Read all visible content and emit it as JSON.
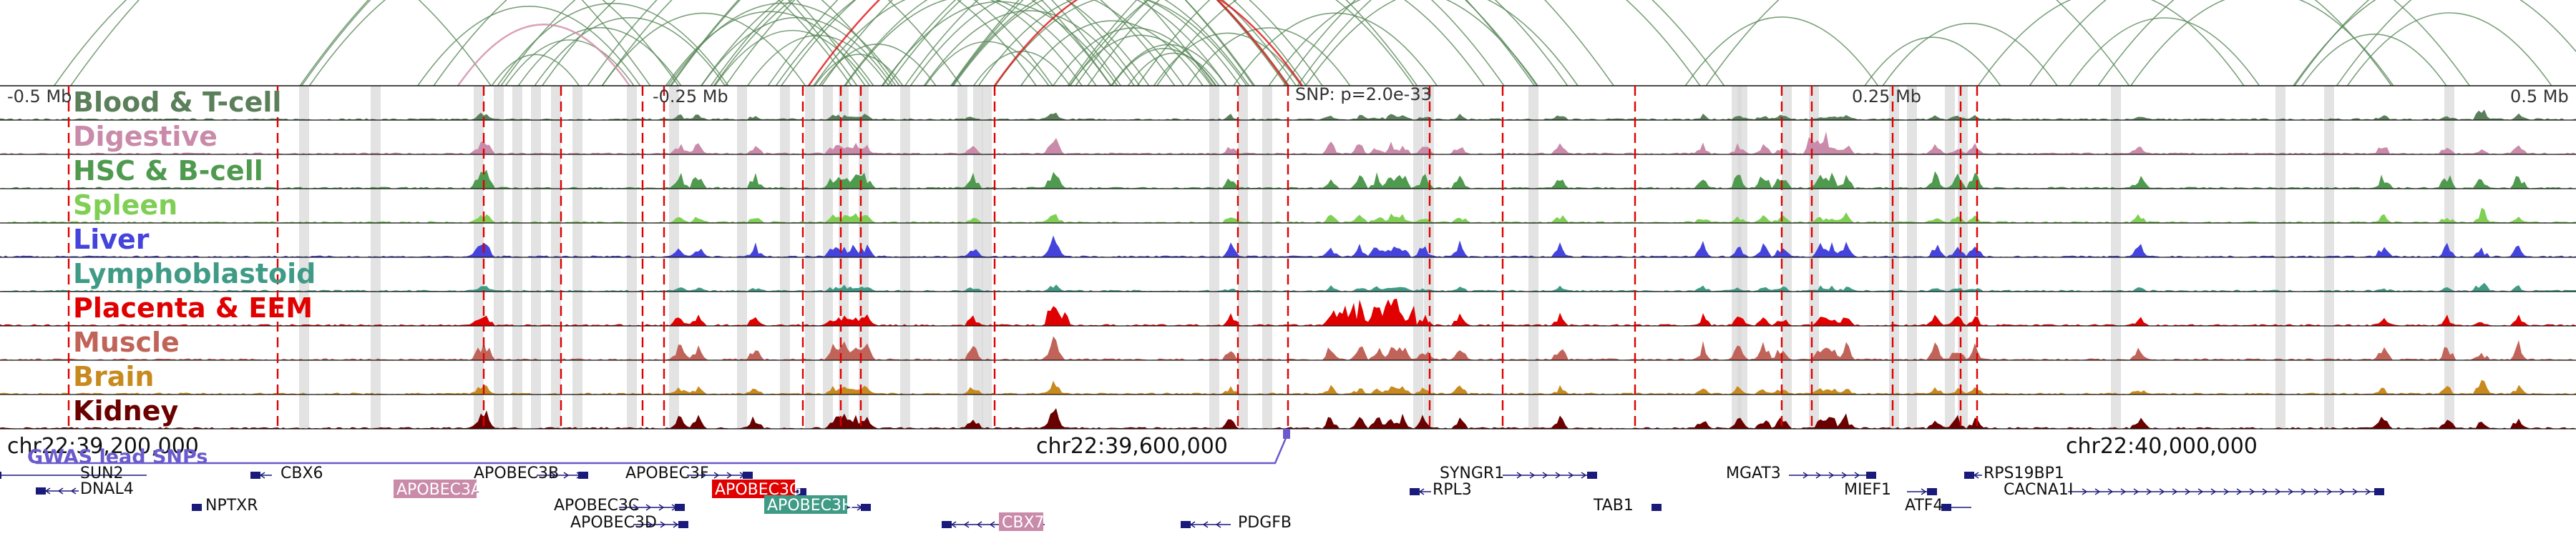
{
  "scale_labels": [
    "-0.5 Mb",
    "-0.25 Mb",
    "0.25 Mb",
    "0.5 Mb"
  ],
  "snp_label": "SNP: p=2.0e-33",
  "gwas_label": "GWAS lead SNPs",
  "coord_labels": [
    "chr22:39,200,000",
    "chr22:39,600,000",
    "chr22:40,000,000"
  ],
  "tracks": [
    {
      "name": "Blood & T-cell",
      "color": "#5b7f5b"
    },
    {
      "name": "Digestive",
      "color": "#c98ba9"
    },
    {
      "name": "HSC & B-cell",
      "color": "#4f9a4f"
    },
    {
      "name": "Spleen",
      "color": "#7fcf55"
    },
    {
      "name": "Liver",
      "color": "#4444dd"
    },
    {
      "name": "Lymphoblastoid",
      "color": "#3f9b86"
    },
    {
      "name": "Placenta & EEM",
      "color": "#e00000"
    },
    {
      "name": "Muscle",
      "color": "#c0645a"
    },
    {
      "name": "Brain",
      "color": "#c88a1e"
    },
    {
      "name": "Kidney",
      "color": "#6a0000"
    }
  ],
  "genes": [
    {
      "name": "SUN2",
      "highlight": ""
    },
    {
      "name": "DNAL4",
      "highlight": ""
    },
    {
      "name": "NPTXR",
      "highlight": ""
    },
    {
      "name": "CBX6",
      "highlight": ""
    },
    {
      "name": "APOBEC3A",
      "highlight": "#c98ba9"
    },
    {
      "name": "APOBEC3B",
      "highlight": ""
    },
    {
      "name": "APOBEC3C",
      "highlight": ""
    },
    {
      "name": "APOBEC3D",
      "highlight": ""
    },
    {
      "name": "APOBEC3F",
      "highlight": ""
    },
    {
      "name": "APOBEC3G",
      "highlight": "#e00000"
    },
    {
      "name": "APOBEC3H",
      "highlight": "#3f9b86"
    },
    {
      "name": "CBX7",
      "highlight": "#c98ba9"
    },
    {
      "name": "PDGFB",
      "highlight": ""
    },
    {
      "name": "SYNGR1",
      "highlight": ""
    },
    {
      "name": "RPL3",
      "highlight": ""
    },
    {
      "name": "TAB1",
      "highlight": ""
    },
    {
      "name": "MGAT3",
      "highlight": ""
    },
    {
      "name": "MIEF1",
      "highlight": ""
    },
    {
      "name": "ATF4",
      "highlight": ""
    },
    {
      "name": "RPS19BP1",
      "highlight": ""
    },
    {
      "name": "CACNA1I",
      "highlight": ""
    }
  ],
  "colors": {
    "arc": "#5b8a5b",
    "arc_red": "#dd1111",
    "highlight_band": "#d9d9d9",
    "snp_line": "#dd0000",
    "gwas": "#6a5acd",
    "gene_body": "#1a1a7a"
  }
}
